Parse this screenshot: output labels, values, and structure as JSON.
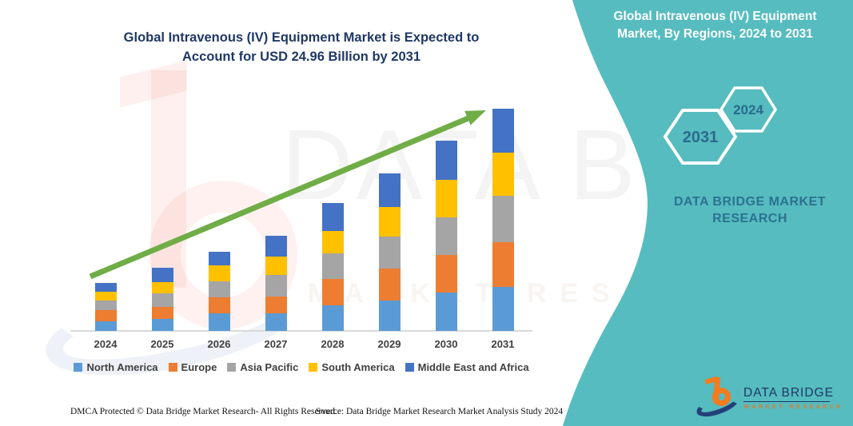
{
  "header": {
    "title": "Global Intravenous (IV) Equipment Market is Expected to Account for USD 24.96 Billion by 2031"
  },
  "sidebar": {
    "title": "Global Intravenous (IV) Equipment Market, By Regions, 2024 to 2031",
    "hexagons": [
      {
        "label": "2031"
      },
      {
        "label": "2024"
      }
    ],
    "brand_text": "DATA BRIDGE MARKET RESEARCH",
    "colors": {
      "background": "#54BCBF",
      "hex_outline": "#FFFFFF",
      "hex_text": "#2B6A8C",
      "brand_text": "#2D7191"
    }
  },
  "chart_data": {
    "type": "bar",
    "stacked": true,
    "title": "Global Intravenous (IV) Equipment Market is Expected to Account for USD 24.96 Billion by 2031",
    "xlabel": "",
    "ylabel": "",
    "unit": "USD Billion (estimated from bar heights; no value axis shown)",
    "categories": [
      "2024",
      "2025",
      "2026",
      "2027",
      "2028",
      "2029",
      "2030",
      "2031"
    ],
    "series": [
      {
        "name": "North America",
        "color": "#5B9BD5",
        "values": [
          1.1,
          1.35,
          1.95,
          1.98,
          2.84,
          3.42,
          4.32,
          4.97
        ]
      },
      {
        "name": "Europe",
        "color": "#ED7D31",
        "values": [
          1.2,
          1.35,
          1.8,
          1.89,
          3.01,
          3.6,
          4.23,
          4.97
        ]
      },
      {
        "name": "Asia Pacific",
        "color": "#A5A5A5",
        "values": [
          1.1,
          1.5,
          1.8,
          2.43,
          2.84,
          3.6,
          4.23,
          5.25
        ]
      },
      {
        "name": "South America",
        "color": "#FFC000",
        "values": [
          1.0,
          1.26,
          1.8,
          2.07,
          2.56,
          3.33,
          4.23,
          4.8
        ]
      },
      {
        "name": "Middle East and Africa",
        "color": "#4472C4",
        "values": [
          1.0,
          1.59,
          1.5,
          2.34,
          3.15,
          3.78,
          4.32,
          4.97
        ]
      }
    ],
    "totals": [
      5.4,
      7.05,
      8.85,
      10.71,
      14.4,
      17.73,
      21.33,
      24.96
    ],
    "ylim": [
      0,
      26
    ],
    "gridlines": false,
    "legend_position": "bottom",
    "annotations": [
      "green upward trend arrow from first bar to last bar"
    ],
    "trend_arrow_color": "#70AD47"
  },
  "watermark": {
    "big_text": "DATA BRIDGE",
    "row_text": "MARKET RESEARCH"
  },
  "footer": {
    "dmca": "DMCA Protected © Data Bridge Market Research-  All Rights Reserved.",
    "source": "Source: Data Bridge Market Research  Market Analysis Study 2024"
  },
  "logo": {
    "name": "DATA BRIDGE",
    "subtitle": "MARKET RESEARCH"
  }
}
